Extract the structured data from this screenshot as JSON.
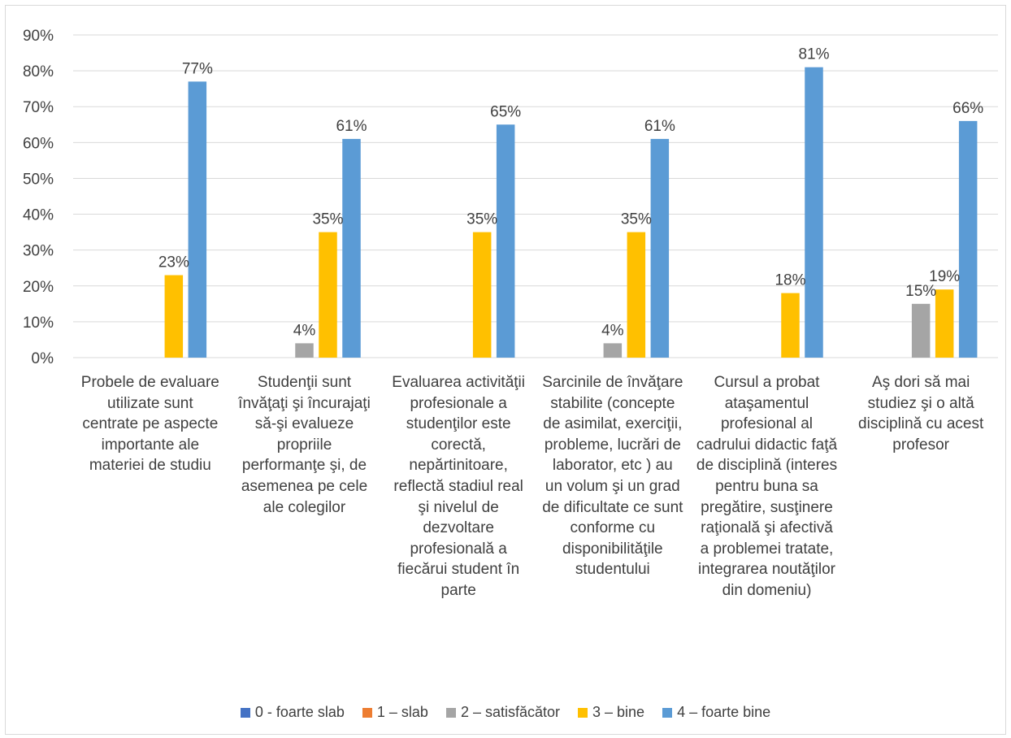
{
  "chart_data": {
    "type": "bar",
    "title": "",
    "xlabel": "",
    "ylabel": "",
    "ylim": [
      0,
      90
    ],
    "yticks": [
      "0%",
      "10%",
      "20%",
      "30%",
      "40%",
      "50%",
      "60%",
      "70%",
      "80%",
      "90%"
    ],
    "grid": true,
    "legend_position": "bottom",
    "categories": [
      "Probele de evaluare utilizate sunt centrate pe aspecte importante ale materiei de studiu",
      "Studenţii sunt învăţaţi şi încurajaţi să-şi evalueze propriile performanţe şi, de asemenea pe cele ale colegilor",
      "Evaluarea activităţii profesionale a studenţilor este corectă, nepărtinitoare, reflectă stadiul real şi nivelul de dezvoltare profesională a fiecărui student în parte",
      "Sarcinile de învăţare stabilite (concepte de asimilat, exerciţii, probleme, lucrări de laborator, etc ) au un volum şi un grad de dificultate ce sunt conforme cu disponibilităţile studentului",
      "Cursul a probat ataşamentul profesional al cadrului didactic faţă de disciplină (interes pentru buna sa pregătire, susţinere raţională şi afectivă a problemei tratate, integrarea noutăţilor din domeniu)",
      "Aş dori să mai studiez şi o altă disciplină cu acest profesor"
    ],
    "series": [
      {
        "name": "0 - foarte slab",
        "color": "#4472c4",
        "values": [
          0,
          0,
          0,
          0,
          0,
          0
        ],
        "labels": [
          "",
          "",
          "",
          "",
          "",
          ""
        ]
      },
      {
        "name": "1 – slab",
        "color": "#ed7d31",
        "values": [
          0,
          0,
          0,
          0,
          0,
          0
        ],
        "labels": [
          "",
          "",
          "",
          "",
          "",
          ""
        ]
      },
      {
        "name": "2 – satisfăcător",
        "color": "#a5a5a5",
        "values": [
          0,
          4,
          0,
          4,
          0,
          15
        ],
        "labels": [
          "",
          "4%",
          "",
          "4%",
          "",
          "15%"
        ]
      },
      {
        "name": "3 – bine",
        "color": "#ffc000",
        "values": [
          23,
          35,
          35,
          35,
          18,
          19
        ],
        "labels": [
          "23%",
          "35%",
          "35%",
          "35%",
          "18%",
          "19%"
        ]
      },
      {
        "name": "4 – foarte bine",
        "color": "#5b9bd5",
        "values": [
          77,
          61,
          65,
          61,
          81,
          66
        ],
        "labels": [
          "77%",
          "61%",
          "65%",
          "61%",
          "81%",
          "66%"
        ]
      }
    ]
  }
}
